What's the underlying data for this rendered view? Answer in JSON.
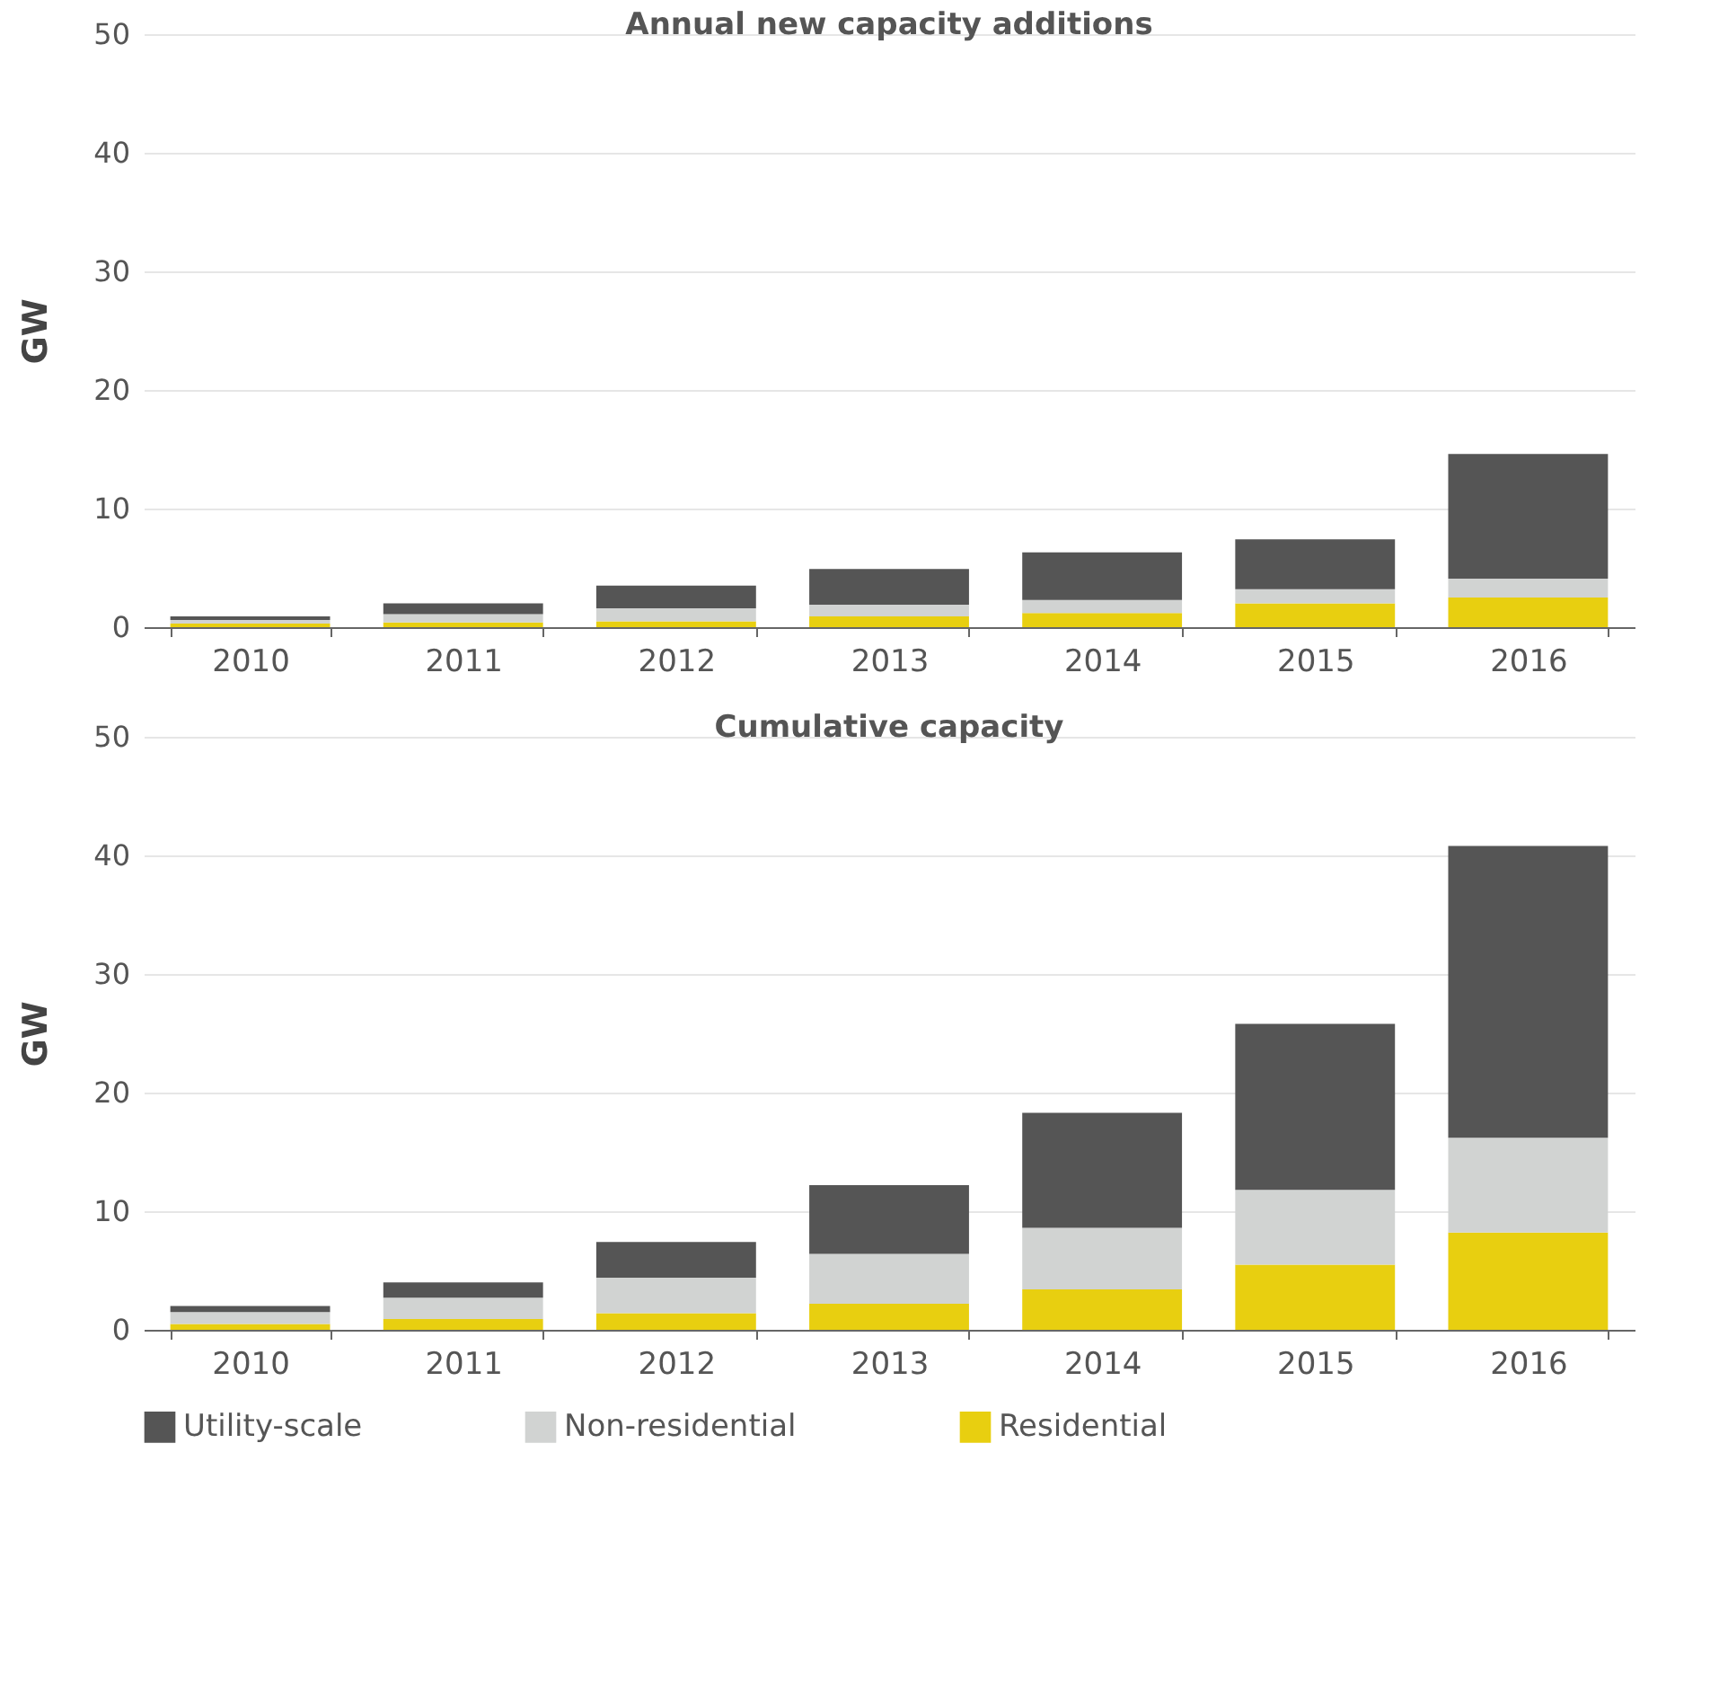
{
  "chart_data": [
    {
      "type": "bar",
      "title": "Annual new capacity additions",
      "ylabel": "GW",
      "categories": [
        "2010",
        "2011",
        "2012",
        "2013",
        "2014",
        "2015",
        "2016"
      ],
      "stacked": true,
      "ylim": [
        0,
        50
      ],
      "yticks": [
        0,
        10,
        20,
        30,
        40,
        50
      ],
      "grid": "y",
      "series": [
        {
          "color": "#e8cf10",
          "values": [
            0.3,
            0.4,
            0.5,
            0.9,
            1.2,
            2.0,
            2.5
          ]
        },
        {
          "color": "#d1d3d2",
          "values": [
            0.3,
            0.7,
            1.1,
            1.0,
            1.1,
            1.2,
            1.6
          ]
        },
        {
          "color": "#555555",
          "values": [
            0.3,
            0.9,
            1.9,
            3.0,
            4.0,
            4.2,
            10.5
          ]
        }
      ]
    },
    {
      "type": "bar",
      "title": "Cumulative capacity",
      "ylabel": "GW",
      "categories": [
        "2010",
        "2011",
        "2012",
        "2013",
        "2014",
        "2015",
        "2016"
      ],
      "stacked": true,
      "ylim": [
        0,
        50
      ],
      "yticks": [
        0,
        10,
        20,
        30,
        40,
        50
      ],
      "grid": "y",
      "legend": "bottom",
      "series": [
        {
          "name": "Residential",
          "color": "#e8cf10",
          "values": [
            0.5,
            0.9,
            1.4,
            2.2,
            3.4,
            5.5,
            8.2
          ]
        },
        {
          "name": "Non-residential",
          "color": "#d1d3d2",
          "values": [
            1.0,
            1.8,
            3.0,
            4.2,
            5.2,
            6.3,
            8.0
          ]
        },
        {
          "name": "Utility-scale",
          "color": "#555555",
          "values": [
            0.5,
            1.3,
            3.0,
            5.8,
            9.7,
            14.0,
            24.6
          ]
        }
      ]
    }
  ]
}
